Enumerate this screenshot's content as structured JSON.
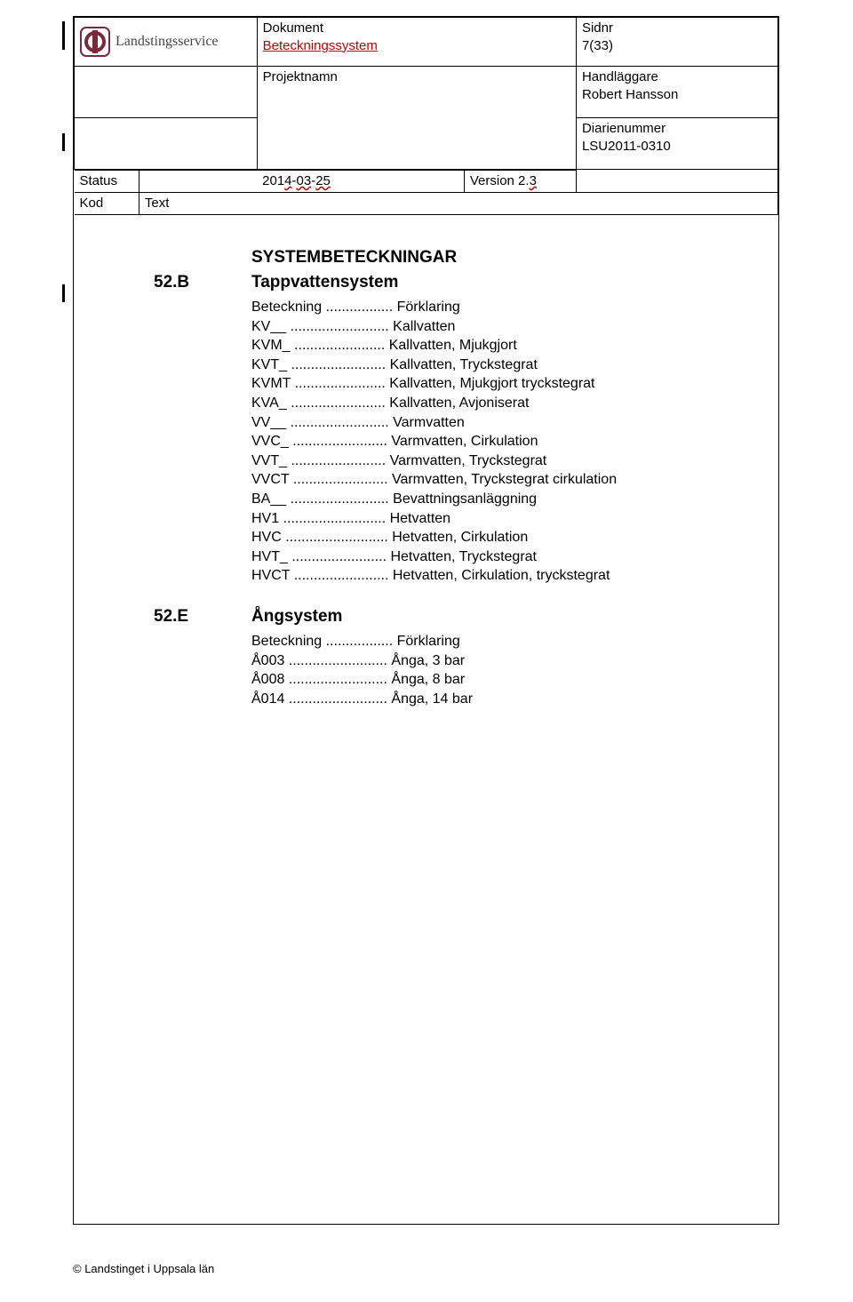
{
  "header": {
    "dokument_label": "Dokument",
    "beteckningssystem": "Beteckningssystem",
    "sidnr_label": "Sidnr",
    "sidnr_value": "7(33)",
    "projektnamn_label": "Projektnamn",
    "handlaggare_label": "Handläggare",
    "handlaggare_value": "Robert Hansson",
    "diarienummer_label": "Diarienummer",
    "diarienummer_value": "LSU2011-0310",
    "status_label": "Status",
    "date_value": "2014-03-25",
    "version_label": "Version 2.3",
    "kod_label": "Kod",
    "text_label": "Text",
    "logo_text": "Landstingsservice"
  },
  "sections": {
    "main_heading": "SYSTEMBETECKNINGAR",
    "s52b": {
      "code": "52.B",
      "title": "Tappvattensystem",
      "header_row": "Beteckning ................. Förklaring",
      "rows": [
        "KV__ ......................... Kallvatten",
        "KVM_ ....................... Kallvatten, Mjukgjort",
        "KVT_ ........................ Kallvatten, Tryckstegrat",
        "KVMT ....................... Kallvatten, Mjukgjort tryckstegrat",
        "KVA_ ........................ Kallvatten, Avjoniserat",
        "VV__ ......................... Varmvatten",
        "VVC_ ........................ Varmvatten, Cirkulation",
        "VVT_ ........................ Varmvatten, Tryckstegrat",
        "VVCT ........................ Varmvatten, Tryckstegrat cirkulation",
        "BA__ ......................... Bevattningsanläggning",
        "HV1 .......................... Hetvatten",
        "HVC .......................... Hetvatten, Cirkulation",
        "HVT_ ........................ Hetvatten, Tryckstegrat",
        "HVCT ........................ Hetvatten, Cirkulation, tryckstegrat"
      ]
    },
    "s52e": {
      "code": "52.E",
      "title": "Ångsystem",
      "header_row": "Beteckning ................. Förklaring",
      "rows": [
        "Å003 ......................... Ånga, 3 bar",
        "Å008 ......................... Ånga, 8 bar",
        "Å014 ......................... Ånga, 14 bar"
      ]
    }
  },
  "footer": "© Landstinget i Uppsala län",
  "colors": {
    "red": "#c00000",
    "border": "#000000",
    "text": "#000000"
  }
}
